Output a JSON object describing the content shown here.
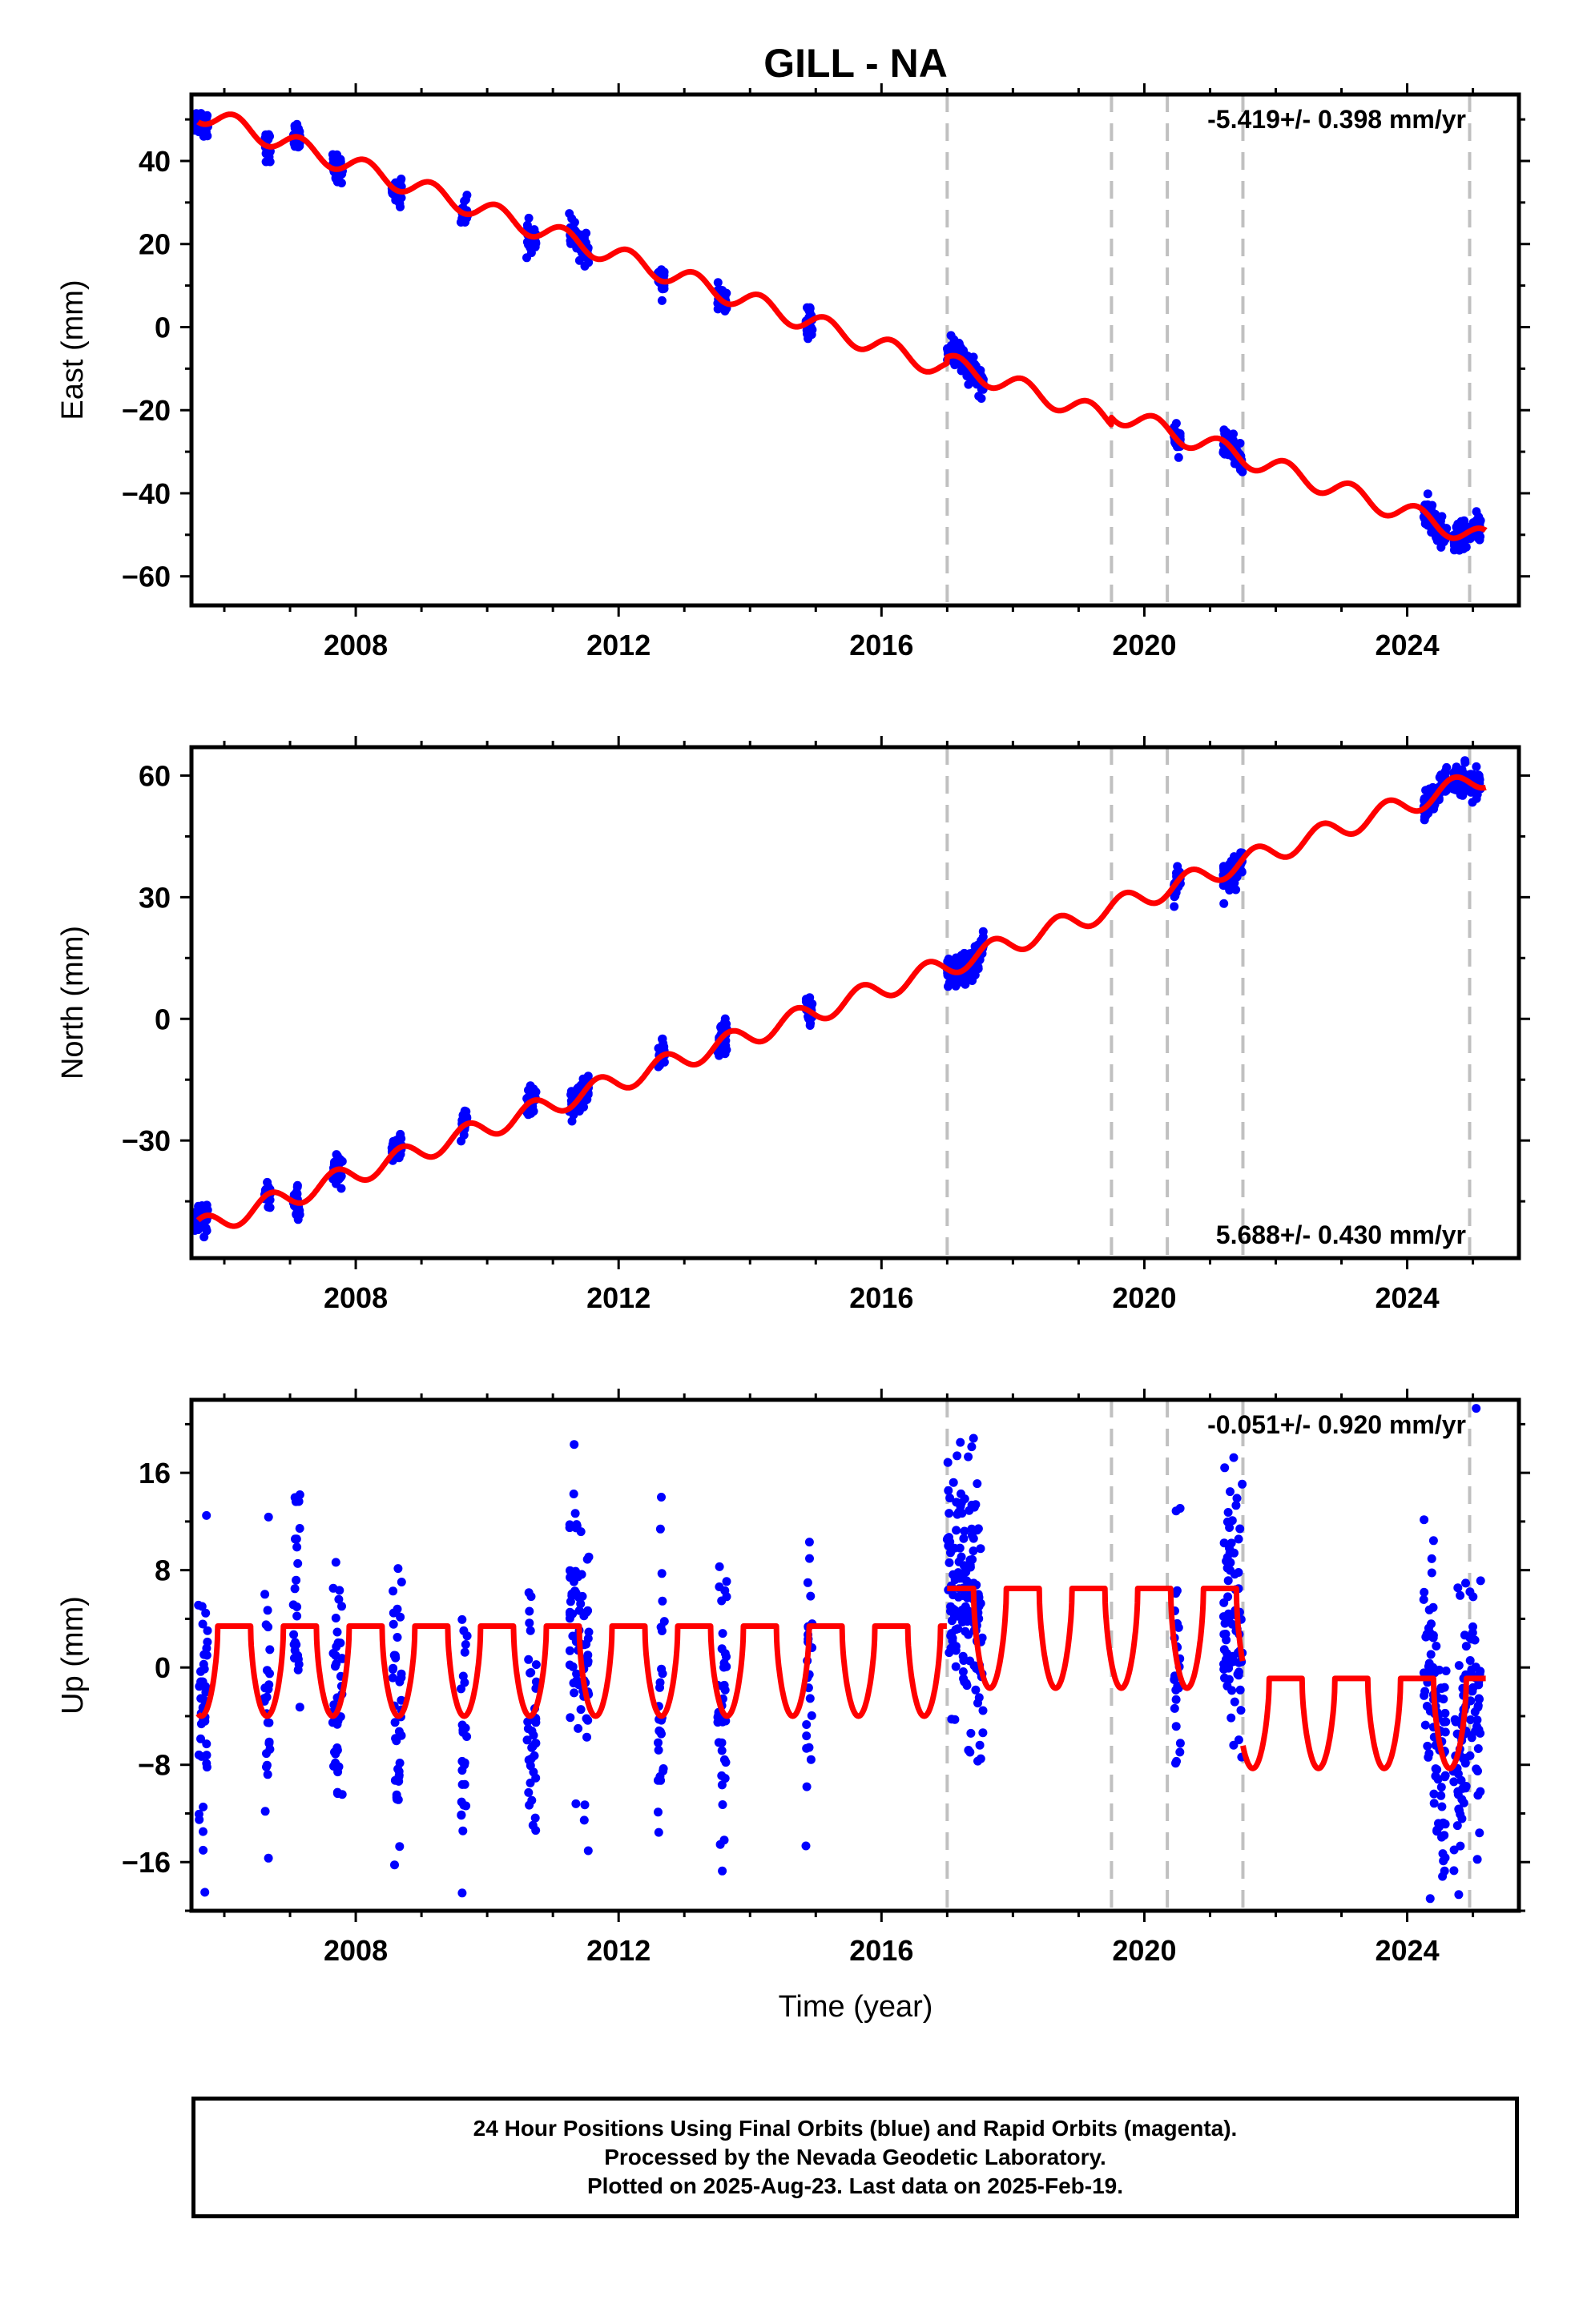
{
  "figure": {
    "title": "GILL - NA",
    "xlabel": "Time (year)",
    "x_ticks": [
      2008,
      2012,
      2016,
      2020,
      2024
    ],
    "xlim": [
      2005.5,
      2025.7
    ],
    "minor_x_step": 1,
    "event_lines": [
      2017.0,
      2019.5,
      2020.35,
      2021.5,
      2024.95
    ],
    "colors": {
      "model": "#ff0000",
      "final_orbits": "#0000ff",
      "event_line": "#c0c0c0",
      "frame": "#000000"
    }
  },
  "chart_data": [
    {
      "type": "scatter",
      "name": "east",
      "ylabel": "East (mm)",
      "ylim": [
        -67,
        56
      ],
      "y_ticks": [
        40,
        20,
        0,
        -20,
        -40,
        -60
      ],
      "minor_y_step": 10,
      "rate_label": "-5.419+/- 0.398 mm/yr",
      "rate_position": "top-right",
      "model": {
        "rate": -5.419,
        "value_at_2006": 49.5,
        "seasonal": [
          {
            "amplitude": 2.4,
            "phase": 0.15
          }
        ],
        "offsets": [
          {
            "year": 2017.0,
            "step": 1.5
          },
          {
            "year": 2019.5,
            "step": 1.8
          }
        ]
      },
      "observation_periods": [
        {
          "start": 2005.55,
          "end": 2005.75
        },
        {
          "start": 2006.6,
          "end": 2006.7
        },
        {
          "start": 2007.05,
          "end": 2007.15
        },
        {
          "start": 2007.65,
          "end": 2007.8
        },
        {
          "start": 2008.55,
          "end": 2008.7
        },
        {
          "start": 2009.6,
          "end": 2009.7
        },
        {
          "start": 2010.6,
          "end": 2010.75
        },
        {
          "start": 2011.25,
          "end": 2011.55
        },
        {
          "start": 2012.6,
          "end": 2012.7
        },
        {
          "start": 2013.5,
          "end": 2013.65
        },
        {
          "start": 2014.85,
          "end": 2014.95
        },
        {
          "start": 2017.0,
          "end": 2017.55
        },
        {
          "start": 2020.45,
          "end": 2020.55
        },
        {
          "start": 2021.2,
          "end": 2021.5
        },
        {
          "start": 2024.25,
          "end": 2024.6
        },
        {
          "start": 2024.7,
          "end": 2024.9
        },
        {
          "start": 2024.95,
          "end": 2025.12
        }
      ],
      "scatter_spread": 1.6
    },
    {
      "type": "scatter",
      "name": "north",
      "ylabel": "North (mm)",
      "ylim": [
        -59,
        67
      ],
      "y_ticks": [
        60,
        30,
        0,
        -30
      ],
      "minor_y_step": 15,
      "rate_label": "5.688+/- 0.430 mm/yr",
      "rate_position": "bottom-right",
      "model": {
        "rate": 5.688,
        "value_at_2006": -49.5,
        "seasonal": [
          {
            "amplitude": 2.6,
            "phase": 0.7
          }
        ],
        "offsets": []
      },
      "observation_periods": [
        {
          "start": 2005.55,
          "end": 2005.75
        },
        {
          "start": 2006.6,
          "end": 2006.7
        },
        {
          "start": 2007.05,
          "end": 2007.15
        },
        {
          "start": 2007.65,
          "end": 2007.8
        },
        {
          "start": 2008.55,
          "end": 2008.7
        },
        {
          "start": 2009.6,
          "end": 2009.7
        },
        {
          "start": 2010.6,
          "end": 2010.75
        },
        {
          "start": 2011.25,
          "end": 2011.55
        },
        {
          "start": 2012.6,
          "end": 2012.7
        },
        {
          "start": 2013.5,
          "end": 2013.65
        },
        {
          "start": 2014.85,
          "end": 2014.95
        },
        {
          "start": 2017.0,
          "end": 2017.55
        },
        {
          "start": 2020.45,
          "end": 2020.55
        },
        {
          "start": 2021.2,
          "end": 2021.5
        },
        {
          "start": 2024.25,
          "end": 2024.6
        },
        {
          "start": 2024.7,
          "end": 2024.9
        },
        {
          "start": 2024.95,
          "end": 2025.12
        }
      ],
      "scatter_spread": 1.8
    },
    {
      "type": "scatter",
      "name": "up",
      "ylabel": "Up (mm)",
      "ylim": [
        -20,
        22
      ],
      "y_ticks": [
        16,
        8,
        0,
        -8,
        -16
      ],
      "minor_y_step": 4,
      "rate_label": "-0.051+/- 0.920 mm/yr",
      "rate_position": "top-right",
      "model": {
        "rate": -0.051,
        "value_at_2006": 0,
        "segments": [
          {
            "start": 2005.6,
            "end": 2017.0,
            "base": -0.3,
            "amplitude": 3.7
          },
          {
            "start": 2017.0,
            "end": 2021.5,
            "base": 2.4,
            "amplitude": 4.1
          },
          {
            "start": 2021.5,
            "end": 2025.2,
            "base": -4.6,
            "amplitude": 3.7
          }
        ]
      },
      "observation_periods": [
        {
          "start": 2005.55,
          "end": 2005.75
        },
        {
          "start": 2006.6,
          "end": 2006.7
        },
        {
          "start": 2007.05,
          "end": 2007.15
        },
        {
          "start": 2007.65,
          "end": 2007.8
        },
        {
          "start": 2008.55,
          "end": 2008.7
        },
        {
          "start": 2009.6,
          "end": 2009.7
        },
        {
          "start": 2010.6,
          "end": 2010.75
        },
        {
          "start": 2011.25,
          "end": 2011.55
        },
        {
          "start": 2012.6,
          "end": 2012.7
        },
        {
          "start": 2013.5,
          "end": 2013.65
        },
        {
          "start": 2014.85,
          "end": 2014.95
        },
        {
          "start": 2017.0,
          "end": 2017.55
        },
        {
          "start": 2020.45,
          "end": 2020.55
        },
        {
          "start": 2021.2,
          "end": 2021.5
        },
        {
          "start": 2024.25,
          "end": 2024.6
        },
        {
          "start": 2024.7,
          "end": 2024.9
        },
        {
          "start": 2024.95,
          "end": 2025.12
        }
      ],
      "scatter_spread": 5.5,
      "outliers": [
        {
          "x": 2017.2,
          "y": 18.5
        },
        {
          "x": 2017.15,
          "y": 17.4
        },
        {
          "x": 2025.05,
          "y": 21.3
        },
        {
          "x": 2007.15,
          "y": 14.2
        },
        {
          "x": 2012.65,
          "y": 14.0
        },
        {
          "x": 2024.35,
          "y": -19.0
        },
        {
          "x": 2011.35,
          "y": -11.2
        },
        {
          "x": 2025.1,
          "y": -13.6
        }
      ]
    }
  ],
  "footer": {
    "line1": "24 Hour Positions Using Final Orbits (blue) and Rapid Orbits (magenta).",
    "line2": "Processed by the Nevada Geodetic Laboratory.",
    "line3": "Plotted on 2025-Aug-23. Last data on 2025-Feb-19."
  }
}
